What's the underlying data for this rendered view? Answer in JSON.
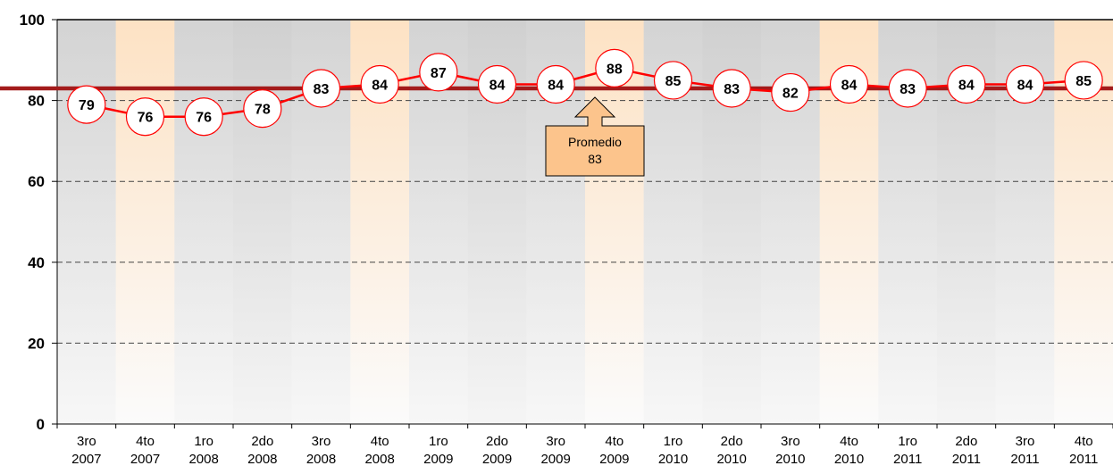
{
  "chart_data": {
    "type": "line",
    "title": "",
    "xlabel": "",
    "ylabel": "",
    "ylim": [
      0,
      100
    ],
    "yticks": [
      0,
      20,
      40,
      60,
      80,
      100
    ],
    "grid": true,
    "categories": [
      [
        "3ro",
        "2007"
      ],
      [
        "4to",
        "2007"
      ],
      [
        "1ro",
        "2008"
      ],
      [
        "2do",
        "2008"
      ],
      [
        "3ro",
        "2008"
      ],
      [
        "4to",
        "2008"
      ],
      [
        "1ro",
        "2009"
      ],
      [
        "2do",
        "2009"
      ],
      [
        "3ro",
        "2009"
      ],
      [
        "4to",
        "2009"
      ],
      [
        "1ro",
        "2010"
      ],
      [
        "2do",
        "2010"
      ],
      [
        "3ro",
        "2010"
      ],
      [
        "4to",
        "2010"
      ],
      [
        "1ro",
        "2011"
      ],
      [
        "2do",
        "2011"
      ],
      [
        "3ro",
        "2011"
      ],
      [
        "4to",
        "2011"
      ]
    ],
    "series": [
      {
        "values": [
          79,
          76,
          76,
          78,
          83,
          84,
          87,
          84,
          84,
          88,
          85,
          83,
          82,
          84,
          83,
          84,
          84,
          85
        ],
        "color": "#ff0000"
      }
    ],
    "average": {
      "value": 83,
      "label": "Promedio",
      "value_label": "83",
      "color": "#a31b1b"
    },
    "highlight_categories": [
      1,
      5,
      9,
      13,
      17
    ],
    "colors": {
      "band_shaded": "#dcdcdc",
      "band_highlight": "#fde3c8",
      "callout_fill": "#fcc48c",
      "marker_fill": "#ffffff",
      "marker_stroke": "#ff0000"
    }
  }
}
